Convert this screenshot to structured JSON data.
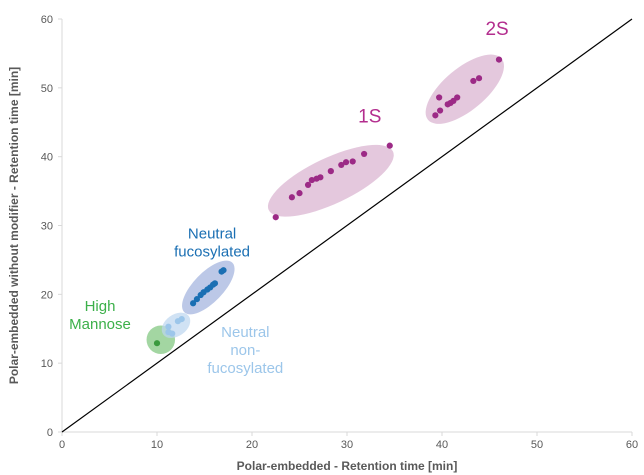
{
  "chart_data": {
    "type": "scatter",
    "title": "",
    "xlabel": "Polar-embedded - Retention time [min]",
    "ylabel": "Polar-embedded without modifier - Retention time [min]",
    "xlim": [
      0,
      60
    ],
    "ylim": [
      0,
      60
    ],
    "xticks": [
      0,
      10,
      20,
      30,
      40,
      50,
      60
    ],
    "yticks": [
      0,
      10,
      20,
      30,
      40,
      50,
      60
    ],
    "grid": false,
    "legend": "none",
    "reference_line": {
      "from": [
        0,
        0
      ],
      "to": [
        60,
        60
      ],
      "color": "#000000"
    },
    "groups": [
      {
        "label_lines": [
          "High",
          "Mannose"
        ],
        "label_at": [
          4.0,
          17.6
        ],
        "label_color": "#3cb04a",
        "label_size": 15,
        "point_color": "#3a9a3e",
        "ellipse": {
          "cx": 10.4,
          "cy": 13.4,
          "rx": 1.5,
          "ry": 1.5,
          "angle_deg": 0,
          "color": "#7cc47a"
        },
        "points": [
          [
            10.0,
            12.9
          ]
        ]
      },
      {
        "label_lines": [
          "Neutral",
          "non-",
          "fucosylated"
        ],
        "label_at": [
          19.3,
          13.8
        ],
        "label_color": "#9cc6ea",
        "label_size": 15,
        "point_color": "#9cc6ea",
        "ellipse": {
          "cx": 12.0,
          "cy": 15.5,
          "rx": 1.9,
          "ry": 1.3,
          "angle_deg": 45,
          "color": "#bcd6ef"
        },
        "points": [
          [
            11.2,
            14.5
          ],
          [
            11.6,
            14.3
          ],
          [
            11.2,
            15.3
          ],
          [
            12.2,
            16.1
          ],
          [
            12.6,
            16.4
          ]
        ]
      },
      {
        "label_lines": [
          "Neutral",
          "fucosylated"
        ],
        "label_at": [
          15.8,
          28.1
        ],
        "label_color": "#1a6fb3",
        "label_size": 15,
        "point_color": "#1a6fb3",
        "ellipse": {
          "cx": 15.4,
          "cy": 21.0,
          "rx": 4.4,
          "ry": 1.9,
          "angle_deg": 55,
          "color": "#9fb0dd"
        },
        "points": [
          [
            13.8,
            18.7
          ],
          [
            14.2,
            19.3
          ],
          [
            14.6,
            19.9
          ],
          [
            14.9,
            20.3
          ],
          [
            15.3,
            20.7
          ],
          [
            15.6,
            21.0
          ],
          [
            15.9,
            21.4
          ],
          [
            16.1,
            21.6
          ],
          [
            16.8,
            23.3
          ],
          [
            17.0,
            23.5
          ]
        ]
      },
      {
        "label_lines": [
          "1S"
        ],
        "label_at": [
          32.4,
          45.0
        ],
        "label_color": "#b32d8e",
        "label_size": 19,
        "point_color": "#9c2a86",
        "ellipse": {
          "cx": 28.3,
          "cy": 36.5,
          "rx": 7.8,
          "ry": 2.6,
          "angle_deg": 33,
          "color": "#d8b0cf"
        },
        "points": [
          [
            22.5,
            31.2
          ],
          [
            24.2,
            34.1
          ],
          [
            25.0,
            34.7
          ],
          [
            25.9,
            35.9
          ],
          [
            26.3,
            36.6
          ],
          [
            26.8,
            36.8
          ],
          [
            27.2,
            37.0
          ],
          [
            28.3,
            37.9
          ],
          [
            29.4,
            38.8
          ],
          [
            29.9,
            39.2
          ],
          [
            30.6,
            39.3
          ],
          [
            31.8,
            40.4
          ],
          [
            34.5,
            41.6
          ]
        ]
      },
      {
        "label_lines": [
          "2S"
        ],
        "label_at": [
          45.8,
          57.7
        ],
        "label_color": "#b32d8e",
        "label_size": 19,
        "point_color": "#9c2a86",
        "ellipse": {
          "cx": 42.4,
          "cy": 49.8,
          "rx": 5.9,
          "ry": 2.6,
          "angle_deg": 49,
          "color": "#d8b0cf"
        },
        "points": [
          [
            39.3,
            46.0
          ],
          [
            39.8,
            46.7
          ],
          [
            39.7,
            48.6
          ],
          [
            40.6,
            47.6
          ],
          [
            40.9,
            47.8
          ],
          [
            41.2,
            48.1
          ],
          [
            41.6,
            48.6
          ],
          [
            43.3,
            51.0
          ],
          [
            43.9,
            51.4
          ],
          [
            46.0,
            54.1
          ]
        ]
      }
    ]
  }
}
